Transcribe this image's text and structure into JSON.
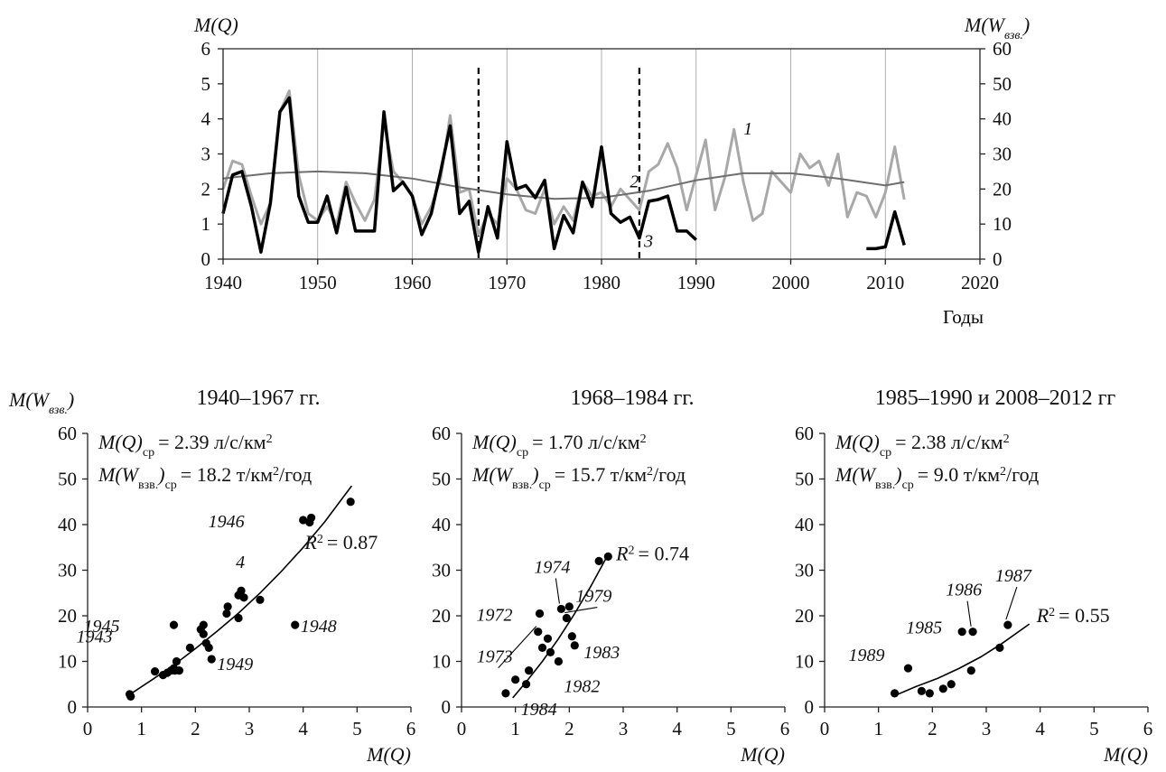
{
  "chart_data": [
    {
      "type": "line",
      "xlabel": "Годы",
      "ylabel_left": "M(Q)",
      "ylabel_right": "M(Wвзв.)",
      "xlim": [
        1940,
        2020
      ],
      "ylim_left": [
        0,
        6
      ],
      "ylim_right": [
        0,
        60
      ],
      "x_ticks": [
        "1940",
        "1950",
        "1960",
        "1970",
        "1980",
        "1990",
        "2000",
        "2010",
        "2020"
      ],
      "y_ticks_left": [
        "0",
        "1",
        "2",
        "3",
        "4",
        "5",
        "6"
      ],
      "y_ticks_right": [
        "0",
        "10",
        "20",
        "30",
        "40",
        "50",
        "60"
      ],
      "period_breaks": [
        1967,
        1984
      ],
      "grid": "vertical, every 10 years",
      "series": [
        {
          "label": "1",
          "axis": "left",
          "color": "#a8a8a8",
          "x": [
            1940,
            1941,
            1942,
            1943,
            1944,
            1945,
            1946,
            1947,
            1948,
            1949,
            1950,
            1951,
            1952,
            1953,
            1954,
            1955,
            1956,
            1957,
            1958,
            1959,
            1960,
            1961,
            1962,
            1963,
            1964,
            1965,
            1966,
            1967,
            1968,
            1969,
            1970,
            1971,
            1972,
            1973,
            1974,
            1975,
            1976,
            1977,
            1978,
            1979,
            1980,
            1981,
            1982,
            1983,
            1984,
            1985,
            1986,
            1987,
            1988,
            1989,
            1990,
            1991,
            1992,
            1993,
            1994,
            1995,
            1996,
            1997,
            1998,
            1999,
            2000,
            2001,
            2002,
            2003,
            2004,
            2005,
            2006,
            2007,
            2008,
            2009,
            2010,
            2011,
            2012
          ],
          "y": [
            2.0,
            2.8,
            2.7,
            1.8,
            1.0,
            1.6,
            4.2,
            4.8,
            2.4,
            1.3,
            1.1,
            1.5,
            1.0,
            2.2,
            1.6,
            1.1,
            1.7,
            3.9,
            2.5,
            2.2,
            1.8,
            1.0,
            1.5,
            2.3,
            4.1,
            1.9,
            2.0,
            0.7,
            1.3,
            1.0,
            2.3,
            2.0,
            1.4,
            1.3,
            2.0,
            1.0,
            1.5,
            1.1,
            2.2,
            1.8,
            1.9,
            1.5,
            2.0,
            1.7,
            1.4,
            2.5,
            2.7,
            3.3,
            2.6,
            1.4,
            2.4,
            3.4,
            1.4,
            2.3,
            3.7,
            2.2,
            1.1,
            1.3,
            2.5,
            2.2,
            1.9,
            3.0,
            2.6,
            2.8,
            2.1,
            3.0,
            1.2,
            1.9,
            1.8,
            1.2,
            1.9,
            3.2,
            1.7
          ]
        },
        {
          "label": "2",
          "axis": "left",
          "color": "#6e6e6e",
          "x": [
            1940,
            1945,
            1950,
            1955,
            1960,
            1965,
            1970,
            1975,
            1980,
            1985,
            1990,
            1995,
            2000,
            2005,
            2010,
            2012
          ],
          "y": [
            2.3,
            2.45,
            2.5,
            2.45,
            2.3,
            2.05,
            1.85,
            1.72,
            1.75,
            1.95,
            2.25,
            2.45,
            2.45,
            2.3,
            2.1,
            2.2
          ]
        },
        {
          "label": "3",
          "axis": "left",
          "color": "#000000",
          "x": [
            1940,
            1941,
            1942,
            1943,
            1944,
            1945,
            1946,
            1947,
            1948,
            1949,
            1950,
            1951,
            1952,
            1953,
            1954,
            1955,
            1956,
            1957,
            1958,
            1959,
            1960,
            1961,
            1962,
            1963,
            1964,
            1965,
            1966,
            1967,
            1968,
            1969,
            1970,
            1971,
            1972,
            1973,
            1974,
            1975,
            1976,
            1977,
            1978,
            1979,
            1980,
            1981,
            1982,
            1983,
            1984,
            1985,
            1986,
            1987,
            1988,
            1989,
            1990,
            null,
            2008,
            2009,
            2010,
            2011,
            2012
          ],
          "y": [
            1.3,
            2.4,
            2.5,
            1.5,
            0.2,
            1.6,
            4.2,
            4.6,
            1.8,
            1.05,
            1.05,
            1.8,
            0.75,
            2.05,
            0.8,
            0.8,
            0.8,
            4.2,
            1.95,
            2.2,
            1.8,
            0.7,
            1.3,
            2.5,
            3.8,
            1.3,
            1.65,
            0.2,
            1.5,
            0.6,
            3.35,
            2.0,
            2.1,
            1.75,
            2.25,
            0.3,
            1.25,
            0.75,
            2.2,
            1.5,
            3.2,
            1.3,
            1.05,
            1.2,
            0.6,
            1.65,
            1.7,
            1.8,
            0.8,
            0.8,
            0.55,
            null,
            0.3,
            0.3,
            0.35,
            1.35,
            0.4
          ]
        }
      ]
    },
    {
      "type": "scatter",
      "title": "1940–1967 гг.",
      "xlabel": "M(Q)",
      "ylabel": "M(Wвзв.)",
      "xlim": [
        0,
        6
      ],
      "ylim": [
        0,
        60
      ],
      "x_ticks": [
        "0",
        "1",
        "2",
        "3",
        "4",
        "5",
        "6"
      ],
      "y_ticks": [
        "0",
        "10",
        "20",
        "30",
        "40",
        "50",
        "60"
      ],
      "stat_q_name": "M(Q)",
      "stat_q_sub": "ср",
      "stat_q_val": "= 2.39 л/с/км",
      "stat_q_sup": "2",
      "stat_w_name": "M(W",
      "stat_w_sub1": "взв.",
      "stat_w_close": ")",
      "stat_w_sub2": "ср",
      "stat_w_val": "= 18.2 т/км",
      "stat_w_sup": "2",
      "stat_w_tail": "/год",
      "r2_pre": "R",
      "r2_sup": "2",
      "r2_val": "= 0.87",
      "curve_label": "4",
      "trend": {
        "x": [
          0.75,
          1.2,
          1.6,
          2.0,
          2.4,
          2.8,
          3.2,
          3.6,
          4.0,
          4.4,
          4.9
        ],
        "y": [
          2.5,
          6.0,
          9.2,
          12.8,
          16.6,
          20.6,
          25.0,
          29.8,
          35.0,
          40.6,
          48.5
        ]
      },
      "points": {
        "x": [
          0.78,
          0.8,
          1.25,
          1.4,
          1.48,
          1.55,
          1.6,
          1.62,
          1.7,
          1.65,
          1.6,
          1.9,
          2.1,
          2.15,
          2.2,
          2.25,
          2.3,
          2.15,
          2.6,
          2.58,
          2.8,
          2.85,
          2.9,
          2.8,
          3.2,
          3.85,
          4.0,
          4.12,
          4.15,
          4.88
        ],
        "y": [
          2.8,
          2.3,
          7.8,
          7.0,
          7.5,
          8.0,
          8.5,
          8.0,
          8.0,
          10.0,
          18.0,
          13.0,
          17.0,
          18.0,
          14.0,
          13.0,
          10.5,
          16.0,
          22.0,
          20.5,
          24.5,
          25.5,
          24.0,
          19.5,
          23.5,
          18.0,
          41.0,
          40.5,
          41.5,
          45.0
        ]
      },
      "labels": [
        {
          "text": "1945",
          "x": 1.6,
          "y": 18.0
        },
        {
          "text": "1943",
          "x": 1.55,
          "y": 15.0
        },
        {
          "text": "1946",
          "x": 4.0,
          "y": 41.0
        },
        {
          "text": "1948",
          "x": 3.85,
          "y": 18.0
        },
        {
          "text": "1949",
          "x": 2.3,
          "y": 10.5
        }
      ]
    },
    {
      "type": "scatter",
      "title": "1968–1984 гг.",
      "xlabel": "M(Q)",
      "xlim": [
        0,
        6
      ],
      "ylim": [
        0,
        60
      ],
      "x_ticks": [
        "0",
        "1",
        "2",
        "3",
        "4",
        "5",
        "6"
      ],
      "y_ticks": [
        "0",
        "10",
        "20",
        "30",
        "40",
        "50",
        "60"
      ],
      "stat_q_name": "M(Q)",
      "stat_q_sub": "ср",
      "stat_q_val": "= 1.70 л/с/км",
      "stat_q_sup": "2",
      "stat_w_name": "M(W",
      "stat_w_sub1": "взв.",
      "stat_w_close": ")",
      "stat_w_sub2": "ср",
      "stat_w_val": "= 15.7 т/км",
      "stat_w_sup": "2",
      "stat_w_tail": "/год",
      "r2_pre": "R",
      "r2_sup": "2",
      "r2_val": "= 0.74",
      "trend": {
        "x": [
          0.95,
          1.2,
          1.5,
          1.8,
          2.1,
          2.4,
          2.7
        ],
        "y": [
          2.0,
          5.5,
          10.0,
          15.0,
          20.5,
          26.5,
          33.0
        ]
      },
      "points": {
        "x": [
          0.82,
          1.0,
          1.2,
          1.25,
          1.42,
          1.45,
          1.5,
          1.6,
          1.65,
          1.8,
          1.85,
          1.95,
          2.05,
          2.0,
          2.1,
          2.55,
          2.72
        ],
        "y": [
          3.0,
          6.0,
          5.0,
          8.0,
          16.5,
          20.5,
          13.0,
          15.0,
          12.0,
          10.0,
          21.5,
          19.5,
          15.5,
          22.0,
          13.5,
          32.0,
          33.0
        ]
      },
      "labels": [
        {
          "text": "1974",
          "x": 1.85,
          "y": 21.5
        },
        {
          "text": "1972",
          "x": 1.45,
          "y": 20.5
        },
        {
          "text": "1979",
          "x": 1.95,
          "y": 19.5
        },
        {
          "text": "1973",
          "x": 1.42,
          "y": 16.5
        },
        {
          "text": "1983",
          "x": 2.1,
          "y": 13.5
        },
        {
          "text": "1982",
          "x": 1.8,
          "y": 10.0
        },
        {
          "text": "1984",
          "x": 1.2,
          "y": 5.0
        }
      ]
    },
    {
      "type": "scatter",
      "title": "1985–1990 и 2008–2012 гг",
      "xlabel": "M(Q)",
      "xlim": [
        0,
        6
      ],
      "ylim": [
        0,
        60
      ],
      "x_ticks": [
        "0",
        "1",
        "2",
        "3",
        "4",
        "5",
        "6"
      ],
      "y_ticks": [
        "0",
        "10",
        "20",
        "30",
        "40",
        "50",
        "60"
      ],
      "stat_q_name": "M(Q)",
      "stat_q_sub": "ср",
      "stat_q_val": "= 2.38 л/с/км",
      "stat_q_sup": "2",
      "stat_w_name": "M(W",
      "stat_w_sub1": "взв.",
      "stat_w_close": ")",
      "stat_w_sub2": "ср",
      "stat_w_val": "= 9.0 т/км",
      "stat_w_sup": "2",
      "stat_w_tail": "/год",
      "r2_pre": "R",
      "r2_sup": "2",
      "r2_val": "= 0.55",
      "trend": {
        "x": [
          1.3,
          1.7,
          2.1,
          2.5,
          2.9,
          3.3,
          3.8
        ],
        "y": [
          2.5,
          4.5,
          6.3,
          8.5,
          11.0,
          14.0,
          18.2
        ]
      },
      "points": {
        "x": [
          1.3,
          1.55,
          1.8,
          1.95,
          2.2,
          2.35,
          2.55,
          2.75,
          2.72,
          3.25,
          3.4
        ],
        "y": [
          3.0,
          8.5,
          3.5,
          3.0,
          4.0,
          5.0,
          16.5,
          16.5,
          8.0,
          13.0,
          18.0
        ]
      },
      "labels": [
        {
          "text": "1986",
          "x": 2.75,
          "y": 16.5
        },
        {
          "text": "1987",
          "x": 3.4,
          "y": 18.0
        },
        {
          "text": "1985",
          "x": 2.55,
          "y": 16.5
        },
        {
          "text": "1989",
          "x": 1.55,
          "y": 8.5
        }
      ]
    }
  ]
}
